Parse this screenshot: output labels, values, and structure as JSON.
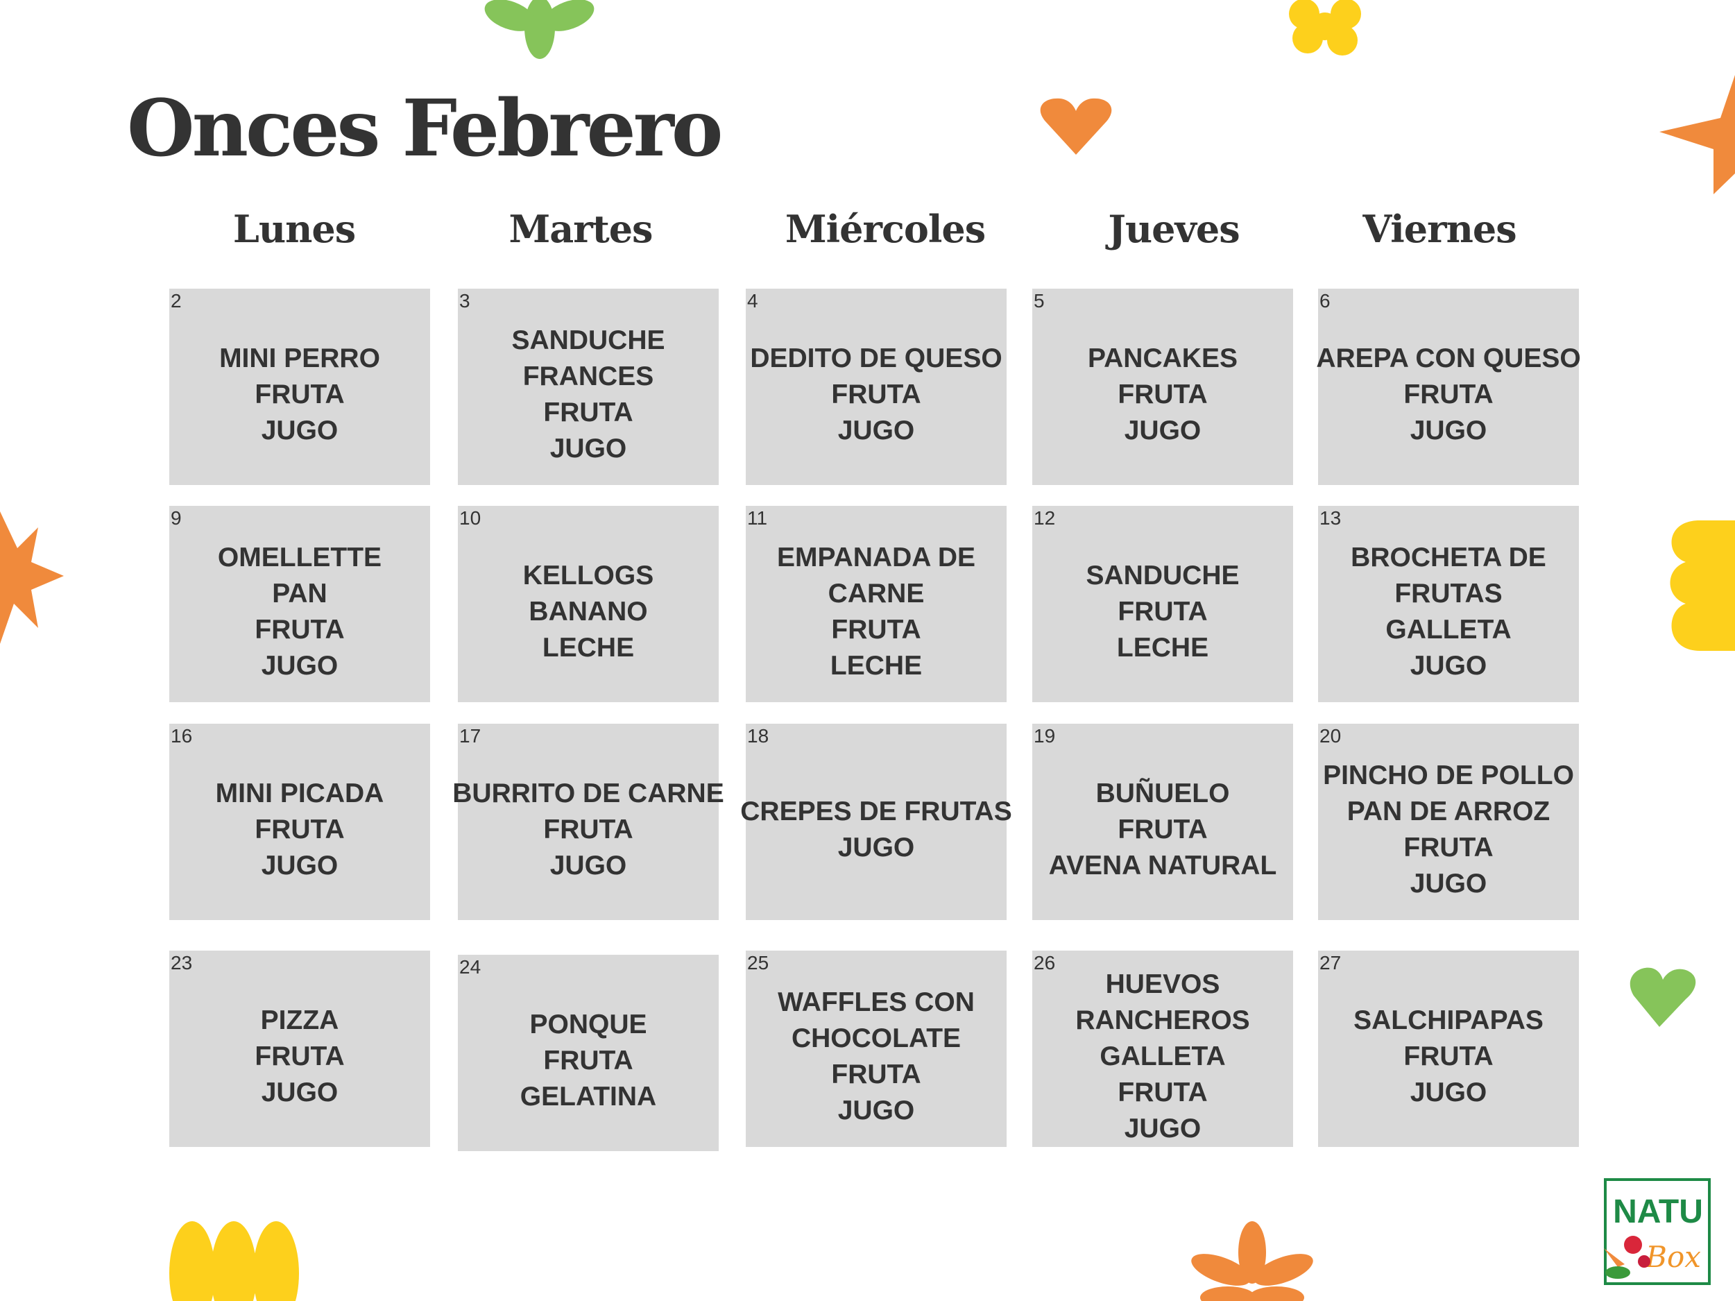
{
  "title": "Onces Febrero",
  "days": [
    "Lunes",
    "Martes",
    "Miércoles",
    "Jueves",
    "Viernes"
  ],
  "weeks": [
    [
      {
        "day": "2",
        "items": [
          "MINI PERRO",
          "FRUTA",
          "JUGO"
        ]
      },
      {
        "day": "3",
        "items": [
          "SANDUCHE",
          "FRANCES",
          "FRUTA",
          "JUGO"
        ]
      },
      {
        "day": "4",
        "items": [
          "DEDITO DE QUESO",
          "FRUTA",
          "JUGO"
        ]
      },
      {
        "day": "5",
        "items": [
          "PANCAKES",
          "FRUTA",
          "JUGO"
        ]
      },
      {
        "day": "6",
        "items": [
          "AREPA CON QUESO",
          "FRUTA",
          "JUGO"
        ]
      }
    ],
    [
      {
        "day": "9",
        "items": [
          "OMELLETTE",
          "PAN",
          "FRUTA",
          "JUGO"
        ]
      },
      {
        "day": "10",
        "items": [
          "KELLOGS",
          "BANANO",
          "LECHE"
        ]
      },
      {
        "day": "11",
        "items": [
          "EMPANADA DE",
          "CARNE",
          "FRUTA",
          "LECHE"
        ]
      },
      {
        "day": "12",
        "items": [
          "SANDUCHE",
          "FRUTA",
          "LECHE"
        ]
      },
      {
        "day": "13",
        "items": [
          "BROCHETA DE",
          "FRUTAS",
          "GALLETA",
          "JUGO"
        ]
      }
    ],
    [
      {
        "day": "16",
        "items": [
          "MINI PICADA",
          "FRUTA",
          "JUGO"
        ]
      },
      {
        "day": "17",
        "items": [
          "BURRITO DE CARNE",
          "FRUTA",
          "JUGO"
        ]
      },
      {
        "day": "18",
        "items": [
          "CREPES DE FRUTAS",
          "JUGO"
        ]
      },
      {
        "day": "19",
        "items": [
          "BUÑUELO",
          "FRUTA",
          "AVENA NATURAL"
        ]
      },
      {
        "day": "20",
        "items": [
          "PINCHO DE POLLO",
          "PAN DE ARROZ",
          "FRUTA",
          "JUGO"
        ]
      }
    ],
    [
      {
        "day": "23",
        "items": [
          "PIZZA",
          "FRUTA",
          "JUGO"
        ]
      },
      {
        "day": "24",
        "items": [
          "PONQUE",
          "FRUTA",
          "GELATINA"
        ]
      },
      {
        "day": "25",
        "items": [
          "WAFFLES CON",
          "CHOCOLATE",
          "FRUTA",
          "JUGO"
        ]
      },
      {
        "day": "26",
        "items": [
          "HUEVOS",
          "RANCHEROS",
          "GALLETA",
          "FRUTA",
          "JUGO"
        ]
      },
      {
        "day": "27",
        "items": [
          "SALCHIPAPAS",
          "FRUTA",
          "JUGO"
        ]
      }
    ]
  ],
  "logo": {
    "text": "NATU Box"
  },
  "colors": {
    "cell": "#d9d9d9",
    "text": "#333333",
    "orange": "#f08a3c",
    "yellow": "#fdd01c",
    "green": "#86c45a",
    "logo_green": "#1e8a46"
  }
}
